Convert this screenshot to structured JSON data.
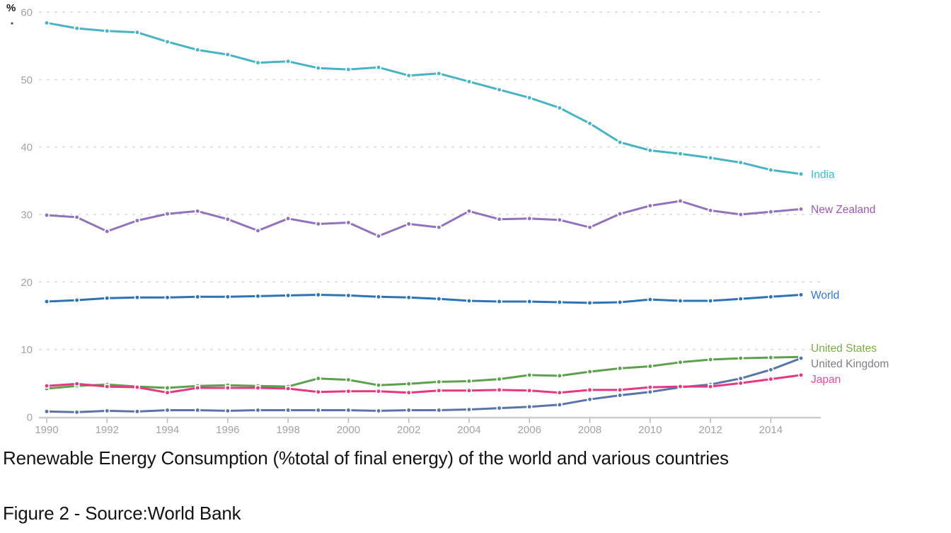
{
  "page": {
    "title": "Renewable Energy Consumption (%total of final energy) of the world and various countries",
    "caption": "Figure 2 - Source:World Bank"
  },
  "chart_data": {
    "type": "line",
    "title": "",
    "unit_label": "%",
    "xlabel": "",
    "ylabel": "%",
    "ylim": [
      0,
      60
    ],
    "y_ticks": [
      0,
      10,
      20,
      30,
      40,
      50,
      60
    ],
    "grid": "horizontal-dashed",
    "legend_position": "line-end-labels",
    "years": [
      1990,
      1991,
      1992,
      1993,
      1994,
      1995,
      1996,
      1997,
      1998,
      1999,
      2000,
      2001,
      2002,
      2003,
      2004,
      2005,
      2006,
      2007,
      2008,
      2009,
      2010,
      2011,
      2012,
      2013,
      2014,
      2015
    ],
    "x_tick_labels": [
      "1990",
      "1992",
      "1994",
      "1996",
      "1998",
      "2000",
      "2002",
      "2004",
      "2006",
      "2008",
      "2010",
      "2012",
      "2014"
    ],
    "x_tick_years": [
      1990,
      1992,
      1994,
      1996,
      1998,
      2000,
      2002,
      2004,
      2006,
      2008,
      2010,
      2012,
      2014
    ],
    "series": [
      {
        "name": "India",
        "color": "#48b4c2",
        "label_color": "#35bece",
        "values": [
          58.4,
          57.6,
          57.2,
          57.0,
          55.6,
          54.4,
          53.7,
          52.5,
          52.7,
          51.7,
          51.5,
          51.8,
          50.6,
          50.9,
          49.7,
          48.5,
          47.3,
          45.8,
          43.5,
          40.7,
          39.5,
          39.0,
          38.4,
          37.7,
          36.6,
          36.0
        ]
      },
      {
        "name": "New Zealand",
        "color": "#9173bb",
        "label_color": "#9a59b5",
        "values": [
          29.9,
          29.6,
          27.5,
          29.1,
          30.1,
          30.5,
          29.3,
          27.6,
          29.4,
          28.6,
          28.8,
          26.8,
          28.6,
          28.1,
          30.5,
          29.3,
          29.4,
          29.2,
          28.1,
          30.1,
          31.3,
          32.0,
          30.6,
          30.0,
          30.4,
          30.8
        ]
      },
      {
        "name": "World",
        "color": "#2e74b5",
        "label_color": "#2f78d6",
        "values": [
          17.1,
          17.3,
          17.6,
          17.7,
          17.7,
          17.8,
          17.8,
          17.9,
          18.0,
          18.1,
          18.0,
          17.8,
          17.7,
          17.5,
          17.2,
          17.1,
          17.1,
          17.0,
          16.9,
          17.0,
          17.4,
          17.2,
          17.2,
          17.5,
          17.8,
          18.1
        ]
      },
      {
        "name": "United States",
        "color": "#5da04e",
        "label_color": "#79ab4e",
        "values": [
          4.2,
          4.6,
          4.8,
          4.5,
          4.3,
          4.6,
          4.7,
          4.6,
          4.5,
          5.7,
          5.5,
          4.7,
          4.9,
          5.2,
          5.3,
          5.6,
          6.2,
          6.1,
          6.7,
          7.2,
          7.5,
          8.1,
          8.5,
          8.7,
          8.8,
          8.9
        ]
      },
      {
        "name": "United Kingdom",
        "color": "#5b74a8",
        "label_color": "#7f7f7f",
        "values": [
          0.8,
          0.7,
          0.9,
          0.8,
          1.0,
          1.0,
          0.9,
          1.0,
          1.0,
          1.0,
          1.0,
          0.9,
          1.0,
          1.0,
          1.1,
          1.3,
          1.5,
          1.8,
          2.6,
          3.2,
          3.7,
          4.4,
          4.8,
          5.7,
          7.0,
          8.7
        ]
      },
      {
        "name": "Japan",
        "color": "#e5397f",
        "label_color": "#f24a97",
        "values": [
          4.6,
          4.9,
          4.5,
          4.4,
          3.6,
          4.3,
          4.3,
          4.3,
          4.2,
          3.7,
          3.8,
          3.8,
          3.6,
          3.9,
          3.9,
          4.0,
          3.9,
          3.6,
          4.0,
          4.0,
          4.4,
          4.5,
          4.5,
          5.0,
          5.6,
          6.2
        ]
      }
    ],
    "style": {
      "gridline_color": "#dcdcdc",
      "axis_line_color": "#cccccc",
      "tick_color": "#b8b8b8",
      "axis_text_color": "#a3a3a3",
      "stray_dot_color": "#44546a"
    }
  }
}
